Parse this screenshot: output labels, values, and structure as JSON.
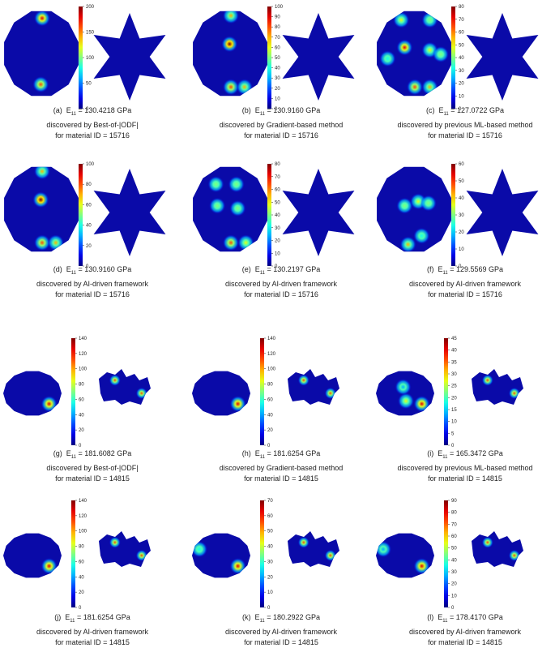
{
  "panels": [
    {
      "label": "(a)",
      "e11": "130.4218 GPa",
      "method": "discovered by Best-of-|ODF|",
      "material": "for material ID = 15716",
      "shape_left": "circle",
      "shape_right": "star",
      "colorbar_ticks": [
        "200",
        "150",
        "100",
        "50",
        "0"
      ],
      "hotspots_left": [
        [
          0.5,
          0.08,
          0.9
        ],
        [
          0.48,
          0.85,
          0.8
        ]
      ],
      "hotspots_right": []
    },
    {
      "label": "(b)",
      "e11": "130.9160 GPa",
      "method": "discovered by Gradient-based method",
      "material": "for material ID = 15716",
      "shape_left": "circle",
      "shape_right": "star",
      "colorbar_ticks": [
        "100",
        "90",
        "80",
        "70",
        "60",
        "50",
        "40",
        "30",
        "20",
        "10",
        "0"
      ],
      "hotspots_left": [
        [
          0.5,
          0.05,
          0.7
        ],
        [
          0.48,
          0.38,
          1.0
        ],
        [
          0.5,
          0.88,
          0.8
        ],
        [
          0.7,
          0.88,
          0.7
        ]
      ],
      "hotspots_right": [
        [
          0.92,
          0.9,
          0.9
        ]
      ]
    },
    {
      "label": "(c)",
      "e11": "127.0722 GPa",
      "method": "discovered by previous ML-based method",
      "material": "for material ID = 15716",
      "shape_left": "circle",
      "shape_right": "star",
      "colorbar_ticks": [
        "80",
        "70",
        "60",
        "50",
        "40",
        "30",
        "20",
        "10",
        "0"
      ],
      "hotspots_left": [
        [
          0.3,
          0.1,
          0.6
        ],
        [
          0.72,
          0.1,
          0.5
        ],
        [
          0.35,
          0.42,
          0.9
        ],
        [
          0.72,
          0.45,
          0.6
        ],
        [
          0.88,
          0.5,
          0.5
        ],
        [
          0.5,
          0.88,
          0.8
        ],
        [
          0.72,
          0.88,
          0.7
        ],
        [
          0.1,
          0.55,
          0.4
        ]
      ],
      "hotspots_right": [
        [
          0.92,
          0.9,
          0.9
        ]
      ]
    },
    {
      "label": "(d)",
      "e11": "130.9160 GPa",
      "method": "discovered by AI-driven framework",
      "material": "for material ID = 15716",
      "shape_left": "circle",
      "shape_right": "star",
      "colorbar_ticks": [
        "100",
        "80",
        "60",
        "40",
        "20",
        "0"
      ],
      "hotspots_left": [
        [
          0.5,
          0.05,
          0.7
        ],
        [
          0.48,
          0.38,
          1.0
        ],
        [
          0.5,
          0.88,
          0.8
        ],
        [
          0.7,
          0.88,
          0.7
        ]
      ],
      "hotspots_right": [
        [
          0.92,
          0.9,
          0.9
        ]
      ]
    },
    {
      "label": "(e)",
      "e11": "130.2197 GPa",
      "method": "discovered by AI-driven framework",
      "material": "for material ID = 15716",
      "shape_left": "circle",
      "shape_right": "star",
      "colorbar_ticks": [
        "80",
        "70",
        "60",
        "50",
        "40",
        "30",
        "20",
        "10",
        "0"
      ],
      "hotspots_left": [
        [
          0.28,
          0.2,
          0.5
        ],
        [
          0.58,
          0.2,
          0.5
        ],
        [
          0.3,
          0.45,
          0.5
        ],
        [
          0.6,
          0.48,
          0.5
        ],
        [
          0.5,
          0.88,
          0.8
        ],
        [
          0.72,
          0.88,
          0.6
        ]
      ],
      "hotspots_right": [
        [
          0.92,
          0.9,
          0.8
        ]
      ]
    },
    {
      "label": "(f)",
      "e11": "129.5569 GPa",
      "method": "discovered by AI-driven framework",
      "material": "for material ID = 15716",
      "shape_left": "circle",
      "shape_right": "star",
      "colorbar_ticks": [
        "60",
        "50",
        "40",
        "30",
        "20",
        "10",
        "0"
      ],
      "hotspots_left": [
        [
          0.35,
          0.45,
          0.5
        ],
        [
          0.55,
          0.4,
          0.6
        ],
        [
          0.7,
          0.42,
          0.5
        ],
        [
          0.4,
          0.9,
          0.7
        ],
        [
          0.6,
          0.8,
          0.4
        ]
      ],
      "hotspots_right": [
        [
          0.9,
          0.85,
          0.5
        ]
      ]
    },
    {
      "label": "(g)",
      "e11": "181.6082 GPa",
      "method": "discovered by Best-of-|ODF|",
      "material": "for material ID = 14815",
      "shape_left": "ellipse",
      "shape_right": "blob",
      "colorbar_ticks": [
        "140",
        "120",
        "100",
        "80",
        "60",
        "40",
        "20",
        "0"
      ],
      "hotspots_left": [
        [
          0.78,
          0.75,
          0.9
        ]
      ],
      "hotspots_right": [
        [
          0.3,
          0.3,
          0.8
        ],
        [
          0.8,
          0.65,
          0.8
        ]
      ]
    },
    {
      "label": "(h)",
      "e11": "181.6254 GPa",
      "method": "discovered by Gradient-based method",
      "material": "for material ID = 14815",
      "shape_left": "ellipse",
      "shape_right": "blob",
      "colorbar_ticks": [
        "140",
        "120",
        "100",
        "80",
        "60",
        "40",
        "20",
        "0"
      ],
      "hotspots_left": [
        [
          0.78,
          0.75,
          0.9
        ]
      ],
      "hotspots_right": [
        [
          0.3,
          0.3,
          0.8
        ],
        [
          0.8,
          0.65,
          0.8
        ]
      ]
    },
    {
      "label": "(i)",
      "e11": "165.3472 GPa",
      "method": "discovered by previous ML-based method",
      "material": "for material ID = 14815",
      "shape_left": "ellipse",
      "shape_right": "blob",
      "colorbar_ticks": [
        "45",
        "40",
        "35",
        "30",
        "25",
        "20",
        "15",
        "10",
        "5",
        "0"
      ],
      "hotspots_left": [
        [
          0.78,
          0.75,
          0.9
        ],
        [
          0.5,
          0.68,
          0.6
        ],
        [
          0.45,
          0.35,
          0.3
        ]
      ],
      "hotspots_right": [
        [
          0.3,
          0.3,
          0.8
        ],
        [
          0.8,
          0.65,
          0.8
        ]
      ]
    },
    {
      "label": "(j)",
      "e11": "181.6254 GPa",
      "method": "discovered by AI-driven framework",
      "material": "for material ID = 14815",
      "shape_left": "ellipse",
      "shape_right": "blob",
      "colorbar_ticks": [
        "140",
        "120",
        "100",
        "80",
        "60",
        "40",
        "20",
        "0"
      ],
      "hotspots_left": [
        [
          0.78,
          0.75,
          0.9
        ]
      ],
      "hotspots_right": [
        [
          0.3,
          0.3,
          0.8
        ],
        [
          0.8,
          0.65,
          0.8
        ]
      ]
    },
    {
      "label": "(k)",
      "e11": "180.2922 GPa",
      "method": "discovered by AI-driven framework",
      "material": "for material ID = 14815",
      "shape_left": "ellipse",
      "shape_right": "blob",
      "colorbar_ticks": [
        "70",
        "60",
        "50",
        "40",
        "30",
        "20",
        "10",
        "0"
      ],
      "hotspots_left": [
        [
          0.78,
          0.75,
          0.9
        ],
        [
          0.1,
          0.35,
          0.4
        ]
      ],
      "hotspots_right": [
        [
          0.3,
          0.3,
          0.8
        ],
        [
          0.8,
          0.65,
          0.8
        ]
      ]
    },
    {
      "label": "(l)",
      "e11": "178.4170 GPa",
      "method": "discovered by AI-driven framework",
      "material": "for material ID = 14815",
      "shape_left": "ellipse",
      "shape_right": "blob",
      "colorbar_ticks": [
        "90",
        "80",
        "70",
        "60",
        "50",
        "40",
        "30",
        "20",
        "10",
        "0"
      ],
      "hotspots_left": [
        [
          0.78,
          0.75,
          0.9
        ],
        [
          0.1,
          0.35,
          0.3
        ]
      ],
      "hotspots_right": [
        [
          0.3,
          0.3,
          0.8
        ],
        [
          0.8,
          0.65,
          0.8
        ]
      ]
    }
  ]
}
